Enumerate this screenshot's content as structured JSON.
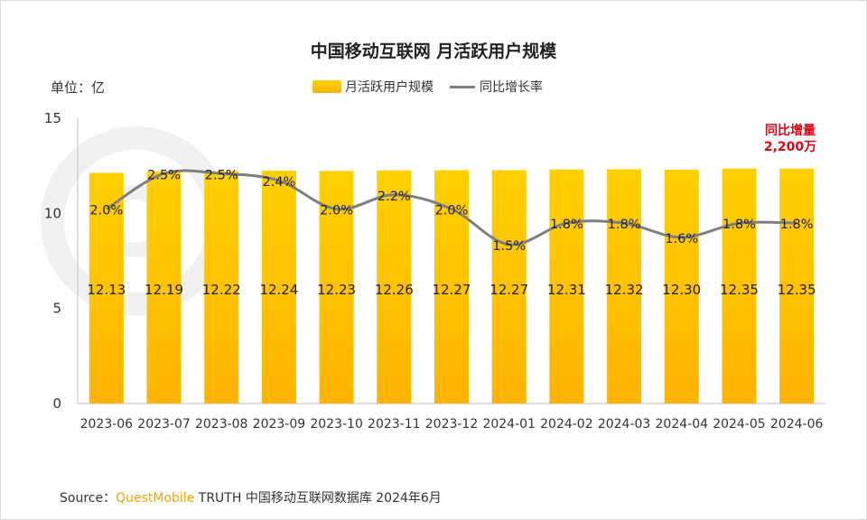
{
  "header": {
    "title": "中国移动互联网 月活跃用户规模",
    "unit": "单位：亿"
  },
  "legend": {
    "bar_label": "月活跃用户规模",
    "line_label": "同比增长率"
  },
  "annotation": {
    "line1": "同比增量",
    "line2": "2,200万"
  },
  "source": {
    "prefix": "Source：",
    "brand": "QuestMobile",
    "rest": " TRUTH 中国移动互联网数据库 2024年6月"
  },
  "colors": {
    "bar_top": "#ffd000",
    "bar_bottom": "#ffb400",
    "line": "#7f7f7f",
    "accent": "#e60012"
  },
  "chart_data": {
    "type": "bar+line",
    "title": "中国移动互联网 月活跃用户规模",
    "categories": [
      "2023-06",
      "2023-07",
      "2023-08",
      "2023-09",
      "2023-10",
      "2023-11",
      "2023-12",
      "2024-01",
      "2024-02",
      "2024-03",
      "2024-04",
      "2024-05",
      "2024-06"
    ],
    "series": [
      {
        "name": "月活跃用户规模",
        "type": "bar",
        "values": [
          12.13,
          12.19,
          12.22,
          12.24,
          12.23,
          12.26,
          12.27,
          12.27,
          12.31,
          12.32,
          12.3,
          12.35,
          12.35
        ],
        "labels": [
          "12.13",
          "12.19",
          "12.22",
          "12.24",
          "12.23",
          "12.26",
          "12.27",
          "12.27",
          "12.31",
          "12.32",
          "12.30",
          "12.35",
          "12.35"
        ]
      },
      {
        "name": "同比增长率",
        "type": "line",
        "values": [
          2.0,
          2.5,
          2.5,
          2.4,
          2.0,
          2.2,
          2.0,
          1.5,
          1.8,
          1.8,
          1.6,
          1.8,
          1.8
        ],
        "labels": [
          "2.0%",
          "2.5%",
          "2.5%",
          "2.4%",
          "2.0%",
          "2.2%",
          "2.0%",
          "1.5%",
          "1.8%",
          "1.8%",
          "1.6%",
          "1.8%",
          "1.8%"
        ]
      }
    ],
    "ylim": [
      0,
      15
    ],
    "yticks": [
      "0",
      "5",
      "10",
      "15"
    ]
  }
}
